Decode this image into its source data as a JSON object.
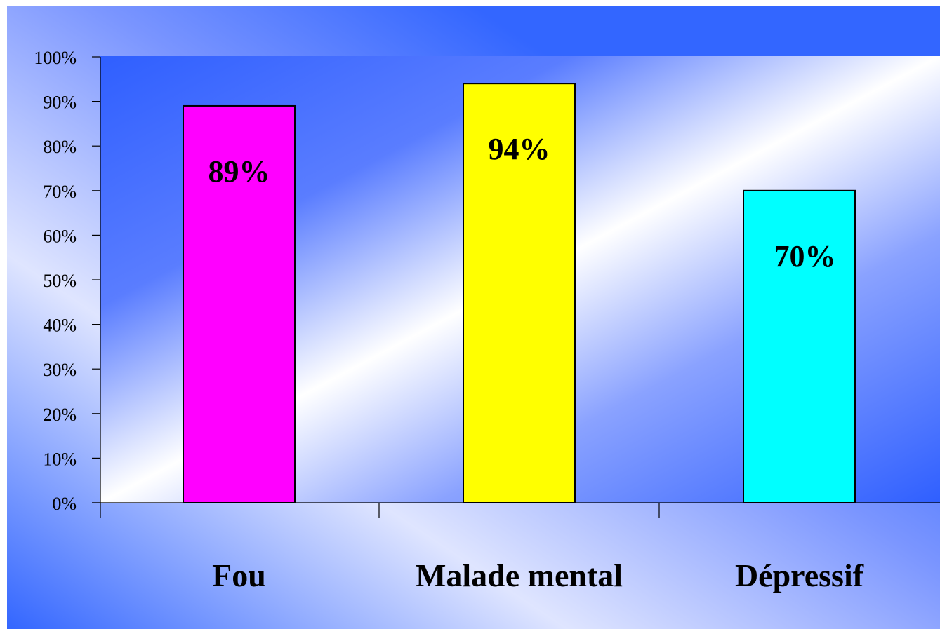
{
  "chart_data": {
    "type": "bar",
    "categories": [
      "Fou",
      "Malade mental",
      "Dépressif"
    ],
    "values": [
      89,
      94,
      70
    ],
    "data_labels": [
      "89%",
      "94%",
      "70%"
    ],
    "bar_colors": [
      "#ff00ff",
      "#ffff00",
      "#00ffff"
    ],
    "ylim": [
      0,
      100
    ],
    "yticks": [
      0,
      10,
      20,
      30,
      40,
      50,
      60,
      70,
      80,
      90,
      100
    ],
    "ytick_labels": [
      "0%",
      "10%",
      "20%",
      "30%",
      "40%",
      "50%",
      "60%",
      "70%",
      "80%",
      "90%",
      "100%"
    ],
    "grid": false,
    "legend": "none",
    "background": "blue-white diagonal gradient"
  },
  "colors": {
    "gradient_blue": "#3366ff",
    "gradient_white": "#ffffff",
    "axis": "#000000"
  }
}
